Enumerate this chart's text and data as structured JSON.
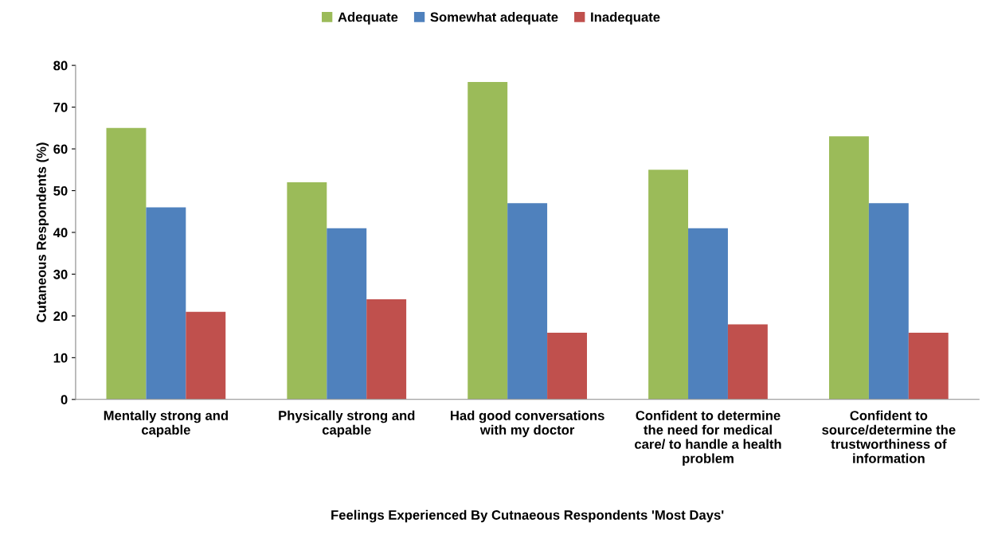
{
  "chart_data": {
    "type": "bar",
    "xlabel": "Feelings Experienced By Cutnaeous Respondents 'Most Days'",
    "ylabel": "Cutaneous Respondents (%)",
    "categories": [
      "Mentally strong and\ncapable",
      "Physically strong and\ncapable",
      "Had good conversations\nwith my doctor",
      "Confident to determine\nthe need for medical\ncare/ to handle a health\nproblem",
      "Confident to\nsource/determine the\ntrustworthiness of\ninformation"
    ],
    "series": [
      {
        "name": "Adequate",
        "color": "#9bbb59",
        "values": [
          65,
          52,
          76,
          55,
          63
        ]
      },
      {
        "name": "Somewhat adequate",
        "color": "#4f81bd",
        "values": [
          46,
          41,
          47,
          41,
          47
        ]
      },
      {
        "name": "Inadequate",
        "color": "#c0504d",
        "values": [
          21,
          24,
          16,
          18,
          16
        ]
      }
    ],
    "ylim": [
      0,
      80
    ],
    "yticks": [
      0,
      10,
      20,
      30,
      40,
      50,
      60,
      70,
      80
    ],
    "grid": false,
    "legend": "top"
  }
}
